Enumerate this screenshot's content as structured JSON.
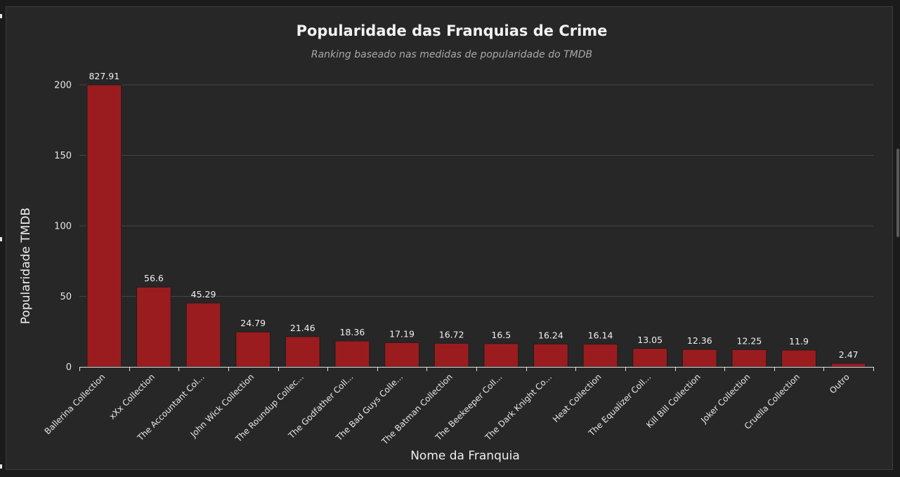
{
  "chart_data": {
    "type": "bar",
    "title": "Popularidade das Franquias de Crime",
    "subtitle": "Ranking baseado nas medidas de popularidade do TMDB",
    "xlabel": "Nome da Franquia",
    "ylabel": "Popularidade TMDB",
    "ylim": [
      0,
      200
    ],
    "yticks": [
      "0",
      "50",
      "100",
      "150",
      "200"
    ],
    "grid": true,
    "bar_color": "#9b1c1f",
    "categories": [
      "Ballerina Collection",
      "xXx Collection",
      "The Accountant Col...",
      "John Wick Collection",
      "The Roundup Collec...",
      "The Godfather Coll...",
      "The Bad Guys Colle...",
      "The Batman Collection",
      "The Beekeeper Coll...",
      "The Dark Knight Co...",
      "Heat Collection",
      "The Equalizer Coll...",
      "Kill Bill Collection",
      "Joker Collection",
      "Cruella Collection",
      "Outro"
    ],
    "values": [
      827.91,
      56.6,
      45.29,
      24.79,
      21.46,
      18.36,
      17.19,
      16.72,
      16.5,
      16.24,
      16.14,
      13.05,
      12.36,
      12.25,
      11.9,
      2.47
    ],
    "value_labels": [
      "827.91",
      "56.6",
      "45.29",
      "24.79",
      "21.46",
      "18.36",
      "17.19",
      "16.72",
      "16.5",
      "16.24",
      "16.14",
      "13.05",
      "12.36",
      "12.25",
      "11.9",
      "2.47"
    ]
  }
}
